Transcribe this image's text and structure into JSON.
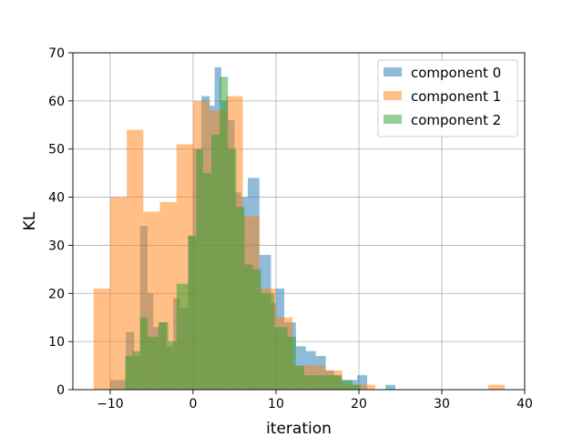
{
  "chart_data": {
    "type": "bar",
    "subtype": "overlapping histogram",
    "title": "",
    "xlabel": "iteration",
    "ylabel": "KL",
    "xlim": [
      -14.5,
      40
    ],
    "ylim": [
      0,
      70
    ],
    "x_ticks": [
      -10,
      0,
      10,
      20,
      30,
      40
    ],
    "y_ticks": [
      0,
      10,
      20,
      30,
      40,
      50,
      60,
      70
    ],
    "grid": true,
    "legend_position": "top-right",
    "bar_opacity": 0.5,
    "series": [
      {
        "name": "component 0",
        "color": "#1f77b4",
        "bins": [
          {
            "x0": -10,
            "x1": -9.4,
            "count": 2
          },
          {
            "x0": -9.4,
            "x1": -8.1,
            "count": 2
          },
          {
            "x0": -8.1,
            "x1": -7.1,
            "count": 12
          },
          {
            "x0": -7.1,
            "x1": -6.4,
            "count": 7
          },
          {
            "x0": -6.4,
            "x1": -5.5,
            "count": 34
          },
          {
            "x0": -5.5,
            "x1": -4.8,
            "count": 20
          },
          {
            "x0": -4.8,
            "x1": -4.0,
            "count": 13
          },
          {
            "x0": -4.0,
            "x1": -3.2,
            "count": 14
          },
          {
            "x0": -3.2,
            "x1": -2.4,
            "count": 9
          },
          {
            "x0": -2.4,
            "x1": -1.6,
            "count": 19
          },
          {
            "x0": -1.6,
            "x1": -0.6,
            "count": 17
          },
          {
            "x0": -0.6,
            "x1": 0.0,
            "count": 32
          },
          {
            "x0": 0.0,
            "x1": 1.0,
            "count": 50
          },
          {
            "x0": 1.0,
            "x1": 2.0,
            "count": 61
          },
          {
            "x0": 2.0,
            "x1": 2.6,
            "count": 59
          },
          {
            "x0": 2.6,
            "x1": 3.4,
            "count": 67
          },
          {
            "x0": 3.4,
            "x1": 4.2,
            "count": 60
          },
          {
            "x0": 4.2,
            "x1": 5.0,
            "count": 56
          },
          {
            "x0": 5.0,
            "x1": 5.8,
            "count": 41
          },
          {
            "x0": 5.8,
            "x1": 6.6,
            "count": 40
          },
          {
            "x0": 6.6,
            "x1": 8.0,
            "count": 44
          },
          {
            "x0": 8.0,
            "x1": 9.4,
            "count": 28
          },
          {
            "x0": 9.4,
            "x1": 10.0,
            "count": 18
          },
          {
            "x0": 10.0,
            "x1": 11.0,
            "count": 21
          },
          {
            "x0": 11.0,
            "x1": 12.4,
            "count": 14
          },
          {
            "x0": 12.4,
            "x1": 13.6,
            "count": 9
          },
          {
            "x0": 13.6,
            "x1": 14.8,
            "count": 8
          },
          {
            "x0": 14.8,
            "x1": 16.0,
            "count": 7
          },
          {
            "x0": 16.0,
            "x1": 17.0,
            "count": 4
          },
          {
            "x0": 17.0,
            "x1": 18.0,
            "count": 3
          },
          {
            "x0": 18.0,
            "x1": 19.8,
            "count": 2
          },
          {
            "x0": 19.8,
            "x1": 21.0,
            "count": 3
          },
          {
            "x0": 21.0,
            "x1": 23.2,
            "count": 0
          },
          {
            "x0": 23.2,
            "x1": 24.4,
            "count": 1
          }
        ]
      },
      {
        "name": "component 1",
        "color": "#ff7f0e",
        "bins": [
          {
            "x0": -12.0,
            "x1": -10.0,
            "count": 21
          },
          {
            "x0": -10.0,
            "x1": -8.0,
            "count": 40
          },
          {
            "x0": -8.0,
            "x1": -6.0,
            "count": 54
          },
          {
            "x0": -6.0,
            "x1": -4.0,
            "count": 37
          },
          {
            "x0": -4.0,
            "x1": -2.0,
            "count": 39
          },
          {
            "x0": -2.0,
            "x1": 0.0,
            "count": 51
          },
          {
            "x0": 0.0,
            "x1": 2.0,
            "count": 60
          },
          {
            "x0": 2.0,
            "x1": 4.0,
            "count": 58
          },
          {
            "x0": 4.0,
            "x1": 6.0,
            "count": 61
          },
          {
            "x0": 6.0,
            "x1": 8.0,
            "count": 36
          },
          {
            "x0": 8.0,
            "x1": 10.0,
            "count": 21
          },
          {
            "x0": 10.0,
            "x1": 12.0,
            "count": 15
          },
          {
            "x0": 12.0,
            "x1": 14.0,
            "count": 5
          },
          {
            "x0": 14.0,
            "x1": 16.0,
            "count": 5
          },
          {
            "x0": 16.0,
            "x1": 18.0,
            "count": 4
          },
          {
            "x0": 18.0,
            "x1": 20.0,
            "count": 1
          },
          {
            "x0": 20.0,
            "x1": 22.0,
            "count": 1
          },
          {
            "x0": 22.0,
            "x1": 24.0,
            "count": 0
          },
          {
            "x0": 24.0,
            "x1": 26.0,
            "count": 0
          },
          {
            "x0": 26.0,
            "x1": 28.0,
            "count": 0
          },
          {
            "x0": 28.0,
            "x1": 30.0,
            "count": 0
          },
          {
            "x0": 30.0,
            "x1": 32.0,
            "count": 0
          },
          {
            "x0": 32.0,
            "x1": 34.0,
            "count": 0
          },
          {
            "x0": 34.0,
            "x1": 35.6,
            "count": 0
          },
          {
            "x0": 35.6,
            "x1": 37.6,
            "count": 1
          }
        ]
      },
      {
        "name": "component 2",
        "color": "#2ca02c",
        "bins": [
          {
            "x0": -8.2,
            "x1": -7.3,
            "count": 7
          },
          {
            "x0": -7.3,
            "x1": -6.4,
            "count": 8
          },
          {
            "x0": -6.4,
            "x1": -5.5,
            "count": 15
          },
          {
            "x0": -5.5,
            "x1": -4.2,
            "count": 11
          },
          {
            "x0": -4.2,
            "x1": -3.0,
            "count": 14
          },
          {
            "x0": -3.0,
            "x1": -2.0,
            "count": 10
          },
          {
            "x0": -2.0,
            "x1": -0.6,
            "count": 22
          },
          {
            "x0": -0.6,
            "x1": 0.4,
            "count": 32
          },
          {
            "x0": 0.4,
            "x1": 1.2,
            "count": 50
          },
          {
            "x0": 1.2,
            "x1": 2.2,
            "count": 45
          },
          {
            "x0": 2.2,
            "x1": 3.2,
            "count": 53
          },
          {
            "x0": 3.2,
            "x1": 4.2,
            "count": 65
          },
          {
            "x0": 4.2,
            "x1": 5.2,
            "count": 50
          },
          {
            "x0": 5.2,
            "x1": 6.2,
            "count": 38
          },
          {
            "x0": 6.2,
            "x1": 7.2,
            "count": 26
          },
          {
            "x0": 7.2,
            "x1": 8.2,
            "count": 25
          },
          {
            "x0": 8.2,
            "x1": 9.8,
            "count": 20
          },
          {
            "x0": 9.8,
            "x1": 11.4,
            "count": 13
          },
          {
            "x0": 11.4,
            "x1": 12.4,
            "count": 11
          },
          {
            "x0": 12.4,
            "x1": 13.4,
            "count": 5
          },
          {
            "x0": 13.4,
            "x1": 15.0,
            "count": 3
          },
          {
            "x0": 15.0,
            "x1": 16.4,
            "count": 3
          },
          {
            "x0": 16.4,
            "x1": 17.8,
            "count": 3
          },
          {
            "x0": 17.8,
            "x1": 19.2,
            "count": 2
          },
          {
            "x0": 19.2,
            "x1": 20.2,
            "count": 1
          }
        ]
      }
    ]
  }
}
